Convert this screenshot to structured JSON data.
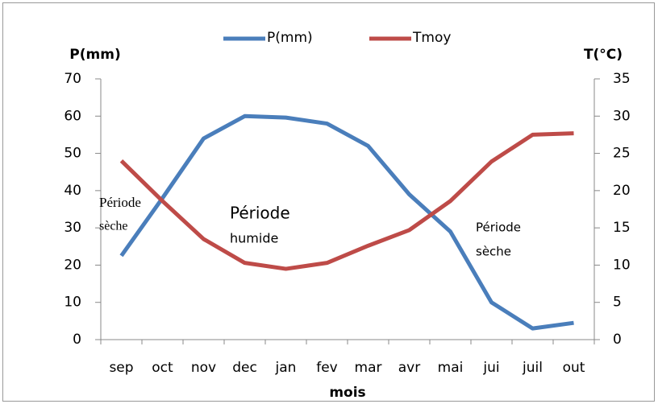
{
  "chart_data": {
    "type": "line",
    "legend": "top",
    "y_label": "P(mm)",
    "y2_label": "T(°C)",
    "x_label": "mois",
    "categories": [
      "sep",
      "oct",
      "nov",
      "dec",
      "jan",
      "fev",
      "mar",
      "avr",
      "mai",
      "jui",
      "juil",
      "out"
    ],
    "series": [
      {
        "name": "P(mm)",
        "color": "#4a7ebb",
        "values": [
          22.5,
          38,
          54,
          60,
          59.6,
          58,
          52,
          39,
          29,
          10,
          3,
          4.5
        ]
      },
      {
        "name": "Tmoy",
        "color": "#be4b48",
        "axis": "y2",
        "values": [
          24,
          18.6,
          13.5,
          10.3,
          9.5,
          10.3,
          12.6,
          14.7,
          18.6,
          23.9,
          27.5,
          27.7
        ]
      }
    ],
    "ylim": [
      0,
      70
    ],
    "yticks": [
      0,
      10,
      20,
      30,
      40,
      50,
      60,
      70
    ],
    "y2lim": [
      0,
      35
    ],
    "y2ticks": [
      0,
      5,
      10,
      15,
      20,
      25,
      30,
      35
    ],
    "grid": false,
    "annotations": [
      "Période",
      "sèche",
      "Période",
      "humide",
      "Période",
      "sèche"
    ]
  }
}
